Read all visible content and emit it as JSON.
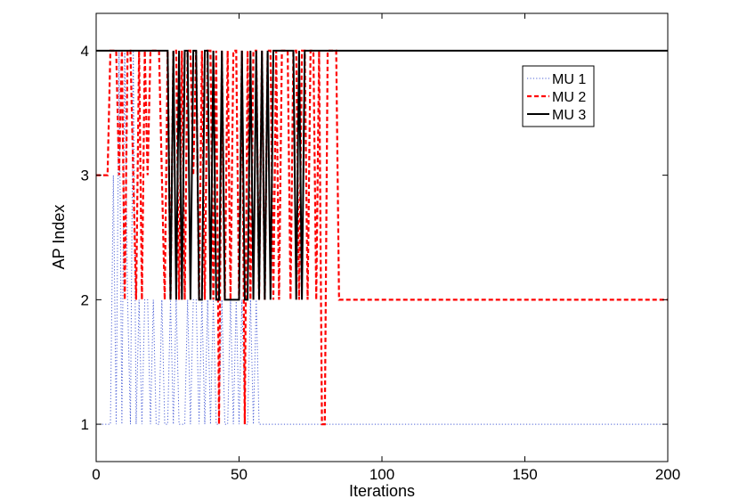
{
  "chart_data": {
    "type": "line",
    "xlabel": "Iterations",
    "ylabel": "AP Index",
    "xlim": [
      0,
      200
    ],
    "ylim": [
      0.7,
      4.3
    ],
    "xticks": [
      0,
      50,
      100,
      150,
      200
    ],
    "yticks": [
      1,
      2,
      3,
      4
    ],
    "grid": false,
    "legend_position": "top-right",
    "series": [
      {
        "name": "MU 1",
        "color": "#4a5fd6",
        "style": "dotted",
        "x": [
          0,
          5,
          6,
          7,
          8,
          9,
          10,
          11,
          12,
          13,
          14,
          15,
          16,
          17,
          18,
          19,
          20,
          21,
          22,
          23,
          24,
          25,
          26,
          27,
          28,
          29,
          30,
          31,
          32,
          33,
          34,
          35,
          36,
          37,
          38,
          39,
          40,
          41,
          42,
          43,
          44,
          45,
          46,
          47,
          48,
          49,
          50,
          51,
          52,
          53,
          54,
          55,
          56,
          57,
          58,
          200
        ],
        "values": [
          1,
          1,
          3,
          1,
          4,
          1,
          4,
          2,
          1,
          4,
          1,
          2,
          1,
          2,
          2,
          1,
          2,
          1,
          1,
          2,
          1,
          1,
          2,
          1,
          2,
          1,
          1,
          1,
          2,
          1,
          2,
          2,
          1,
          2,
          1,
          2,
          1,
          2,
          1,
          1,
          2,
          1,
          1,
          2,
          1,
          2,
          1,
          2,
          1,
          1,
          2,
          1,
          2,
          1,
          1,
          1
        ]
      },
      {
        "name": "MU 2",
        "color": "#ff0000",
        "style": "dashed",
        "x": [
          0,
          4,
          5,
          6,
          7,
          8,
          9,
          10,
          11,
          12,
          13,
          14,
          15,
          16,
          17,
          18,
          19,
          20,
          21,
          22,
          23,
          24,
          25,
          26,
          27,
          28,
          29,
          30,
          31,
          32,
          33,
          34,
          35,
          36,
          37,
          38,
          39,
          40,
          41,
          42,
          43,
          44,
          45,
          46,
          47,
          48,
          49,
          50,
          51,
          52,
          53,
          54,
          55,
          56,
          57,
          58,
          59,
          60,
          61,
          62,
          63,
          64,
          65,
          66,
          67,
          68,
          69,
          70,
          71,
          72,
          73,
          74,
          75,
          76,
          77,
          78,
          79,
          80,
          81,
          82,
          83,
          84,
          85,
          200
        ],
        "values": [
          3,
          3,
          4,
          4,
          4,
          3,
          4,
          2,
          4,
          4,
          3,
          2,
          4,
          2,
          4,
          3,
          4,
          4,
          4,
          4,
          3,
          2,
          4,
          2,
          4,
          4,
          2,
          4,
          2,
          4,
          4,
          3,
          4,
          2,
          4,
          2,
          4,
          4,
          2,
          4,
          1,
          4,
          2,
          4,
          2,
          4,
          4,
          2,
          4,
          1,
          4,
          2,
          4,
          4,
          2,
          4,
          2,
          4,
          4,
          2,
          4,
          2,
          4,
          4,
          4,
          2,
          4,
          4,
          2,
          4,
          4,
          2,
          4,
          4,
          2,
          4,
          1,
          1,
          4,
          4,
          4,
          4,
          2,
          2
        ]
      },
      {
        "name": "MU 3",
        "color": "#000000",
        "style": "solid",
        "x": [
          0,
          25,
          26,
          27,
          28,
          29,
          30,
          31,
          32,
          33,
          34,
          35,
          36,
          37,
          38,
          39,
          40,
          41,
          42,
          43,
          44,
          45,
          46,
          47,
          48,
          49,
          50,
          51,
          52,
          53,
          54,
          55,
          56,
          57,
          58,
          59,
          60,
          61,
          62,
          63,
          64,
          65,
          66,
          67,
          68,
          69,
          70,
          71,
          72,
          73,
          200
        ],
        "values": [
          4,
          4,
          2,
          4,
          2,
          4,
          2,
          4,
          4,
          2,
          4,
          4,
          2,
          2,
          4,
          4,
          2,
          4,
          2,
          2,
          4,
          2,
          2,
          2,
          2,
          2,
          2,
          4,
          2,
          2,
          4,
          2,
          4,
          2,
          4,
          2,
          4,
          2,
          4,
          4,
          4,
          4,
          4,
          4,
          4,
          4,
          2,
          4,
          2,
          4,
          4
        ]
      }
    ]
  }
}
